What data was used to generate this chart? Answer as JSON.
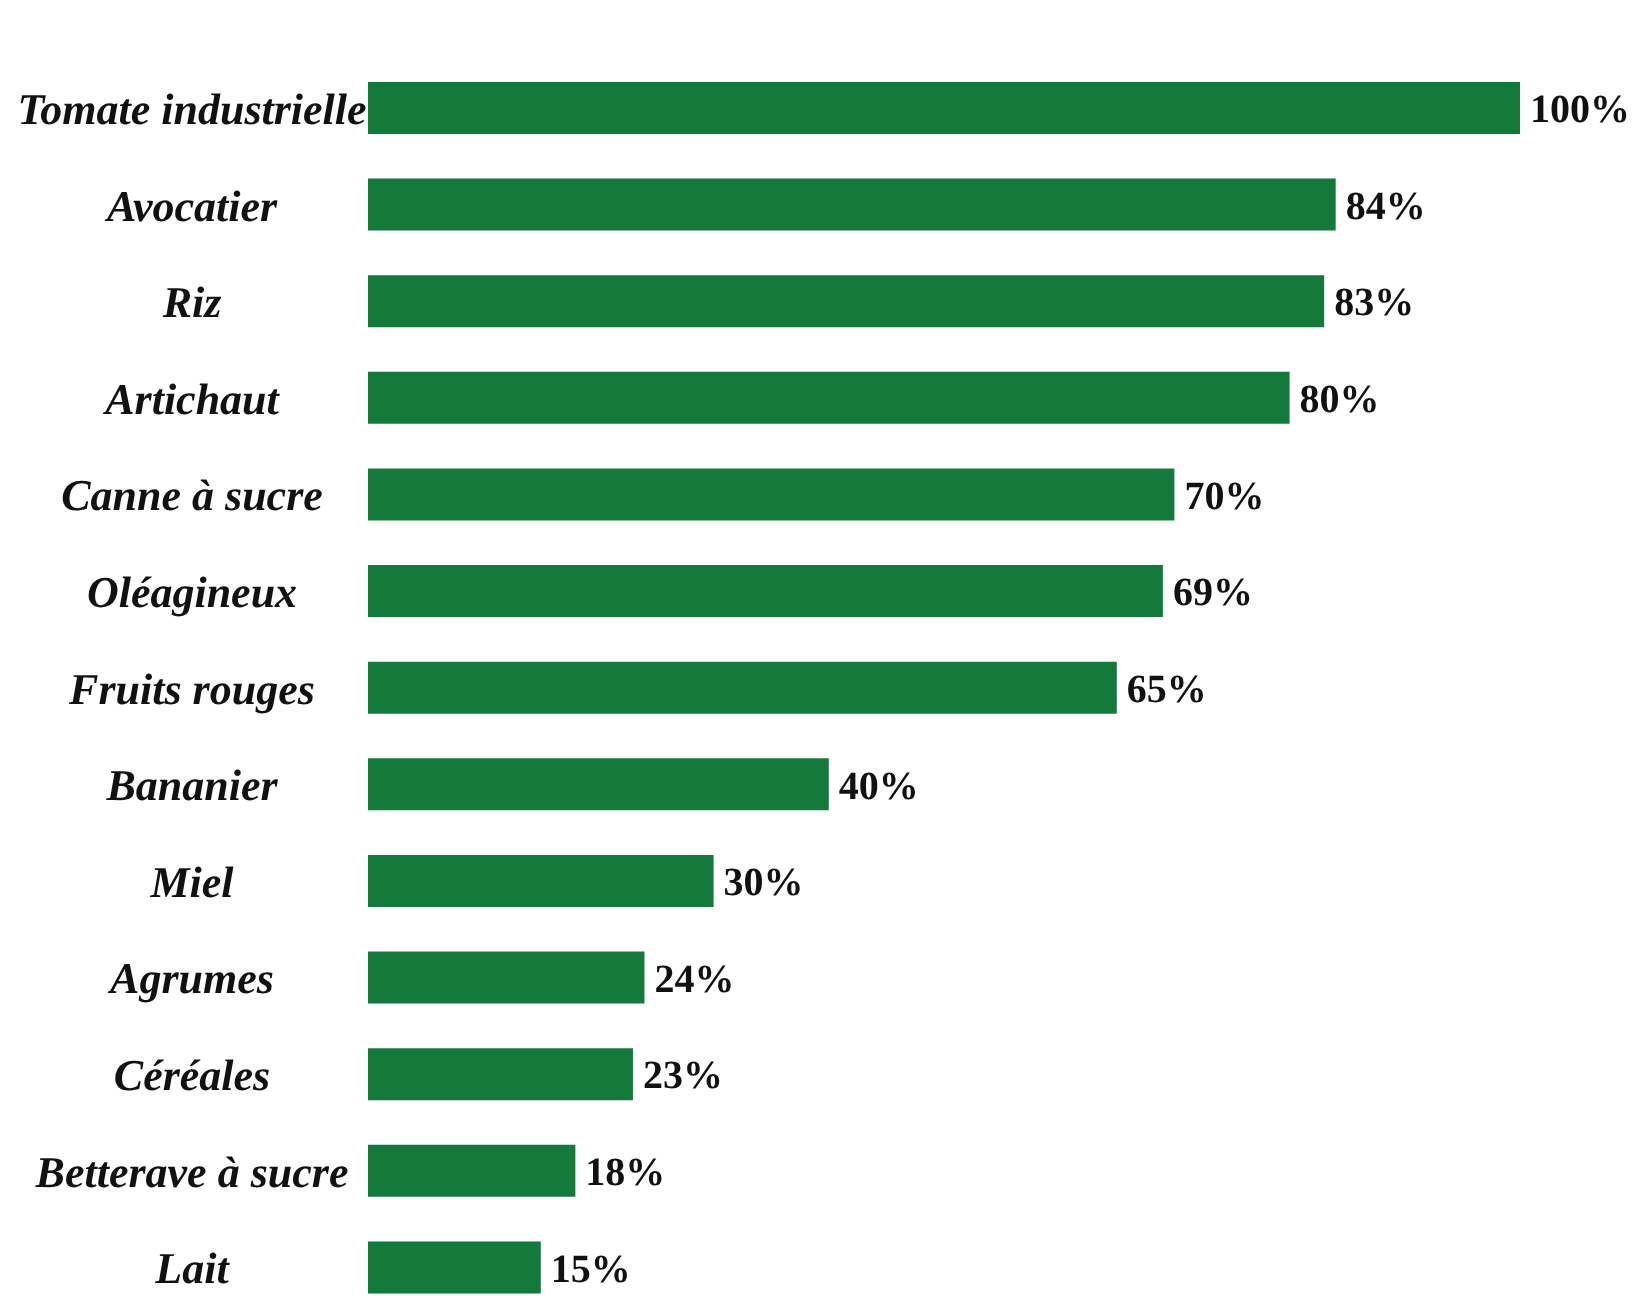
{
  "chart_data": {
    "type": "bar",
    "orientation": "horizontal",
    "categories": [
      "Tomate industrielle",
      "Avocatier",
      "Riz",
      "Artichaut",
      "Canne à sucre",
      "Oléagineux",
      "Fruits rouges",
      "Bananier",
      "Miel",
      "Agrumes",
      "Céréales",
      "Betterave à sucre",
      "Lait"
    ],
    "values": [
      100,
      84,
      83,
      80,
      70,
      69,
      65,
      40,
      30,
      24,
      23,
      18,
      15
    ],
    "value_labels": [
      "100%",
      "84%",
      "83%",
      "80%",
      "70%",
      "69%",
      "65%",
      "40%",
      "30%",
      "24%",
      "23%",
      "18%",
      "15%"
    ],
    "color": "#137a3c",
    "tick_labels": "y"
  }
}
